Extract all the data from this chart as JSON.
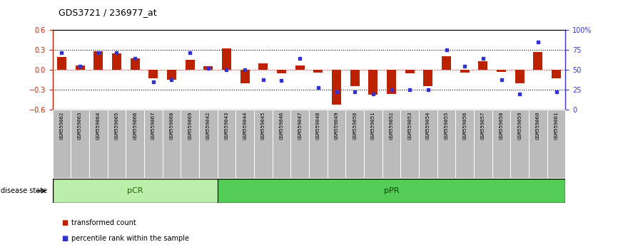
{
  "title": "GDS3721 / 236977_at",
  "samples": [
    "GSM559062",
    "GSM559063",
    "GSM559064",
    "GSM559065",
    "GSM559066",
    "GSM559067",
    "GSM559068",
    "GSM559069",
    "GSM559042",
    "GSM559043",
    "GSM559044",
    "GSM559045",
    "GSM559046",
    "GSM559047",
    "GSM559048",
    "GSM559049",
    "GSM559050",
    "GSM559051",
    "GSM559052",
    "GSM559053",
    "GSM559054",
    "GSM559055",
    "GSM559056",
    "GSM559057",
    "GSM559058",
    "GSM559059",
    "GSM559060",
    "GSM559061"
  ],
  "red_values": [
    0.2,
    0.07,
    0.28,
    0.25,
    0.17,
    -0.13,
    -0.15,
    0.15,
    0.06,
    0.33,
    -0.2,
    0.1,
    -0.05,
    0.07,
    -0.04,
    -0.52,
    -0.25,
    -0.37,
    -0.36,
    -0.05,
    -0.25,
    0.21,
    -0.04,
    0.13,
    -0.03,
    -0.2,
    0.27,
    -0.13
  ],
  "blue_pct": [
    72,
    55,
    72,
    72,
    65,
    35,
    38,
    72,
    52,
    50,
    50,
    38,
    37,
    65,
    28,
    22,
    22,
    20,
    25,
    25,
    25,
    75,
    55,
    65,
    38,
    20,
    85,
    22
  ],
  "pCR_count": 9,
  "pPR_count": 19,
  "ylim_left": [
    -0.6,
    0.6
  ],
  "ylim_right": [
    0,
    100
  ],
  "yticks_red": [
    -0.6,
    -0.3,
    0.0,
    0.3,
    0.6
  ],
  "yticks_blue": [
    0,
    25,
    50,
    75,
    100
  ],
  "bar_color": "#BB2200",
  "blue_color": "#3333CC",
  "pCR_facecolor": "#BBEEAA",
  "pPR_facecolor": "#55CC55",
  "disease_state_label": "disease state",
  "legend_red": "transformed count",
  "legend_blue": "percentile rank within the sample",
  "tick_bg": "#BBBBBB",
  "bar_width": 0.5
}
